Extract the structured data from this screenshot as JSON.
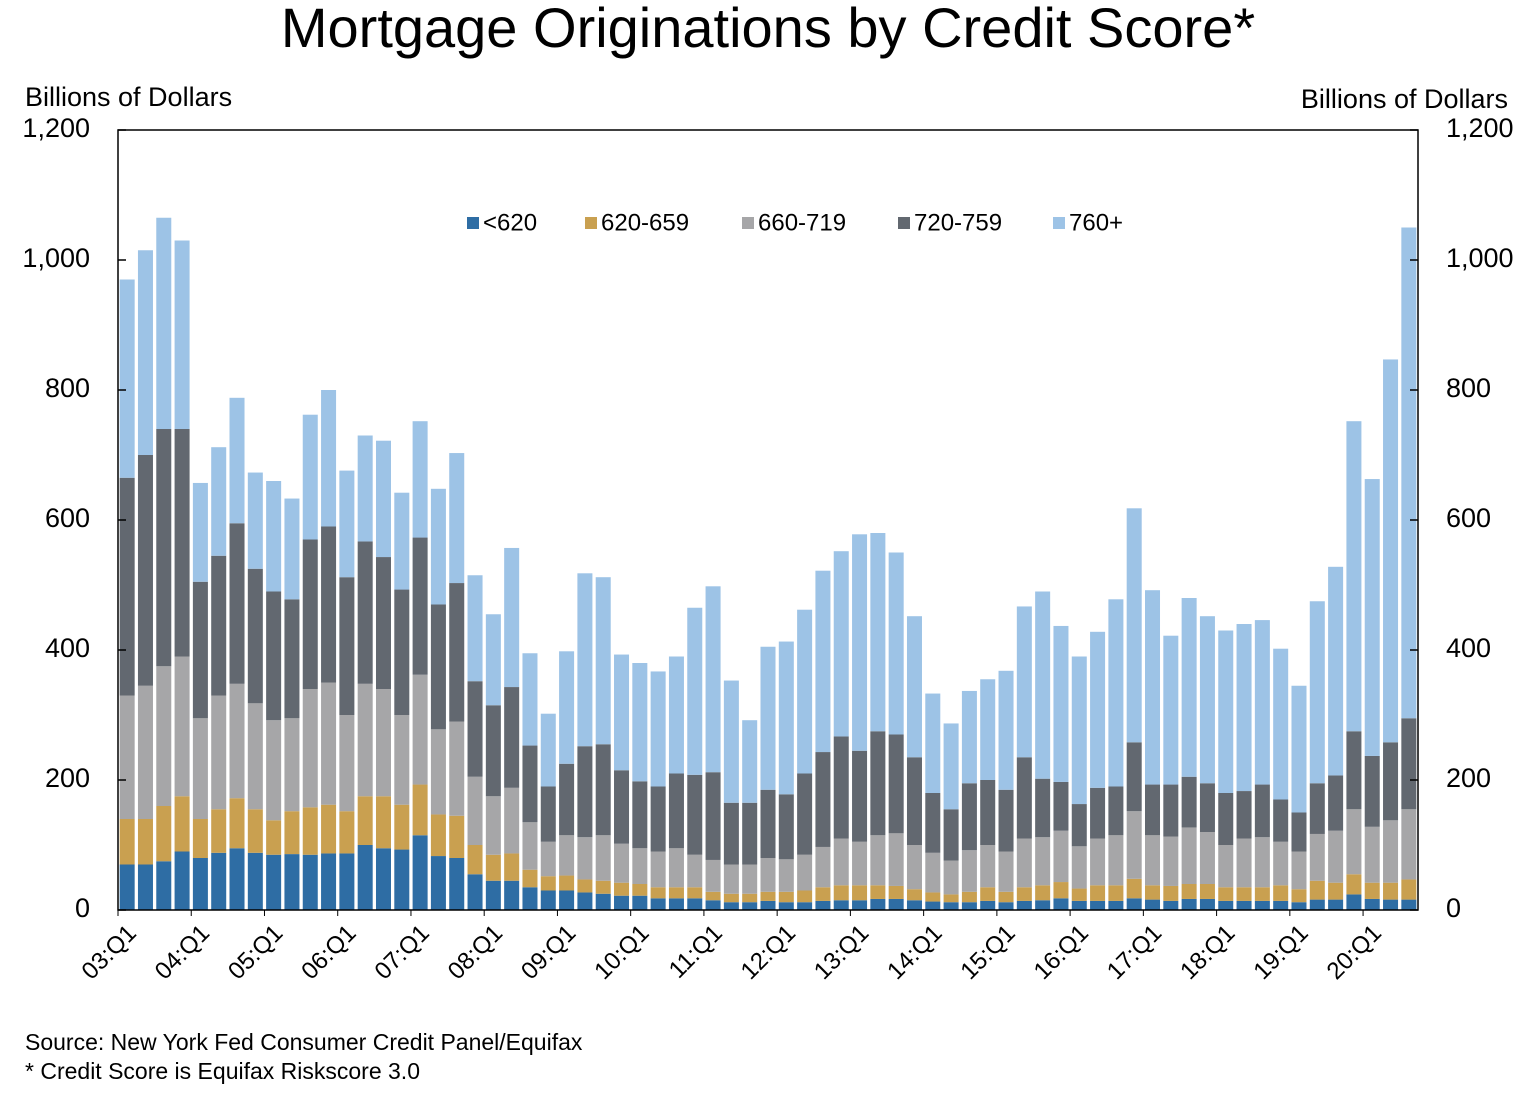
{
  "chart_data": {
    "type": "bar",
    "stacked": true,
    "title": "Mortgage Originations by Credit Score*",
    "ylabel": "Billions of Dollars",
    "y2label": "Billions of Dollars",
    "annotations": [
      "Source: New York Fed Consumer Credit Panel/Equifax",
      "* Credit Score is Equifax Riskscore 3.0"
    ],
    "legend": "top",
    "categories": [
      "03:Q1",
      null,
      null,
      null,
      "04:Q1",
      null,
      null,
      null,
      "05:Q1",
      null,
      null,
      null,
      "06:Q1",
      null,
      null,
      null,
      "07:Q1",
      null,
      null,
      null,
      "08:Q1",
      null,
      null,
      null,
      "09:Q1",
      null,
      null,
      null,
      "10:Q1",
      null,
      null,
      null,
      "11:Q1",
      null,
      null,
      null,
      "12:Q1",
      null,
      null,
      null,
      "13:Q1",
      null,
      null,
      null,
      "14:Q1",
      null,
      null,
      null,
      "15:Q1",
      null,
      null,
      null,
      "16:Q1",
      null,
      null,
      null,
      "17:Q1",
      null,
      null,
      null,
      "18:Q1",
      null,
      null,
      null,
      "19:Q1",
      null,
      null,
      null,
      "20:Q1",
      null,
      null
    ],
    "series": [
      {
        "name": "<620",
        "color": "#2e6da4",
        "values": [
          70,
          70,
          75,
          90,
          80,
          88,
          95,
          88,
          85,
          86,
          85,
          87,
          87,
          100,
          95,
          93,
          115,
          83,
          80,
          55,
          45,
          45,
          35,
          30,
          30,
          27,
          25,
          22,
          22,
          18,
          18,
          18,
          15,
          12,
          12,
          14,
          12,
          12,
          14,
          15,
          15,
          17,
          17,
          15,
          13,
          12,
          12,
          14,
          12,
          14,
          15,
          18,
          14,
          14,
          14,
          18,
          16,
          14,
          17,
          17,
          14,
          14,
          14,
          14,
          12,
          16,
          16,
          24,
          17,
          16,
          16
        ]
      },
      {
        "name": "620-659",
        "color": "#c9a050",
        "values": [
          70,
          70,
          85,
          85,
          60,
          67,
          77,
          67,
          53,
          66,
          73,
          75,
          65,
          75,
          80,
          69,
          78,
          64,
          65,
          45,
          40,
          42,
          27,
          22,
          23,
          20,
          20,
          20,
          18,
          17,
          17,
          17,
          13,
          13,
          13,
          14,
          16,
          18,
          21,
          23,
          23,
          21,
          20,
          17,
          14,
          12,
          16,
          21,
          16,
          21,
          23,
          25,
          19,
          24,
          24,
          30,
          22,
          23,
          23,
          23,
          21,
          21,
          21,
          24,
          20,
          29,
          26,
          31,
          25,
          26,
          31
        ]
      },
      {
        "name": "660-719",
        "color": "#a6a6a8",
        "values": [
          190,
          205,
          215,
          215,
          155,
          175,
          176,
          163,
          154,
          143,
          182,
          188,
          148,
          173,
          165,
          138,
          169,
          131,
          145,
          105,
          90,
          101,
          73,
          53,
          62,
          65,
          70,
          60,
          55,
          55,
          60,
          50,
          49,
          45,
          45,
          52,
          50,
          55,
          62,
          72,
          67,
          77,
          81,
          68,
          61,
          52,
          64,
          65,
          62,
          75,
          74,
          79,
          65,
          72,
          77,
          104,
          77,
          76,
          87,
          80,
          65,
          75,
          77,
          67,
          58,
          72,
          80,
          100,
          86,
          96,
          108
        ]
      },
      {
        "name": "720-759",
        "color": "#626870",
        "values": [
          335,
          355,
          365,
          350,
          210,
          215,
          247,
          207,
          198,
          183,
          230,
          240,
          212,
          219,
          203,
          193,
          211,
          192,
          213,
          147,
          140,
          155,
          118,
          85,
          110,
          140,
          140,
          113,
          103,
          100,
          115,
          123,
          135,
          95,
          95,
          105,
          100,
          125,
          146,
          157,
          140,
          160,
          152,
          135,
          92,
          79,
          103,
          100,
          95,
          125,
          90,
          75,
          65,
          78,
          75,
          106,
          78,
          80,
          78,
          75,
          80,
          73,
          81,
          65,
          60,
          78,
          85,
          120,
          109,
          120,
          140
        ]
      },
      {
        "name": "760+",
        "color": "#9dc3e6",
        "values": [
          305,
          315,
          325,
          290,
          152,
          167,
          193,
          148,
          170,
          155,
          192,
          210,
          164,
          163,
          179,
          149,
          179,
          178,
          200,
          163,
          140,
          214,
          142,
          112,
          173,
          266,
          257,
          178,
          182,
          177,
          180,
          257,
          286,
          188,
          127,
          220,
          235,
          252,
          279,
          285,
          333,
          305,
          280,
          217,
          153,
          132,
          142,
          155,
          183,
          232,
          288,
          240,
          227,
          240,
          288,
          360,
          299,
          229,
          275,
          257,
          250,
          257,
          253,
          232,
          195,
          280,
          321,
          477,
          426,
          589,
          755
        ]
      }
    ],
    "ylim": [
      0,
      1200
    ],
    "yticks": [
      0,
      200,
      400,
      600,
      800,
      {
        "value": 1000,
        "label": "1,000"
      },
      {
        "value": 1200,
        "label": "1,200"
      }
    ],
    "y2lim": [
      0,
      1200
    ],
    "y2ticks": [
      0,
      200,
      400,
      600,
      800,
      {
        "value": 1000,
        "label": "1,000"
      },
      {
        "value": 1200,
        "label": "1,200"
      }
    ]
  }
}
